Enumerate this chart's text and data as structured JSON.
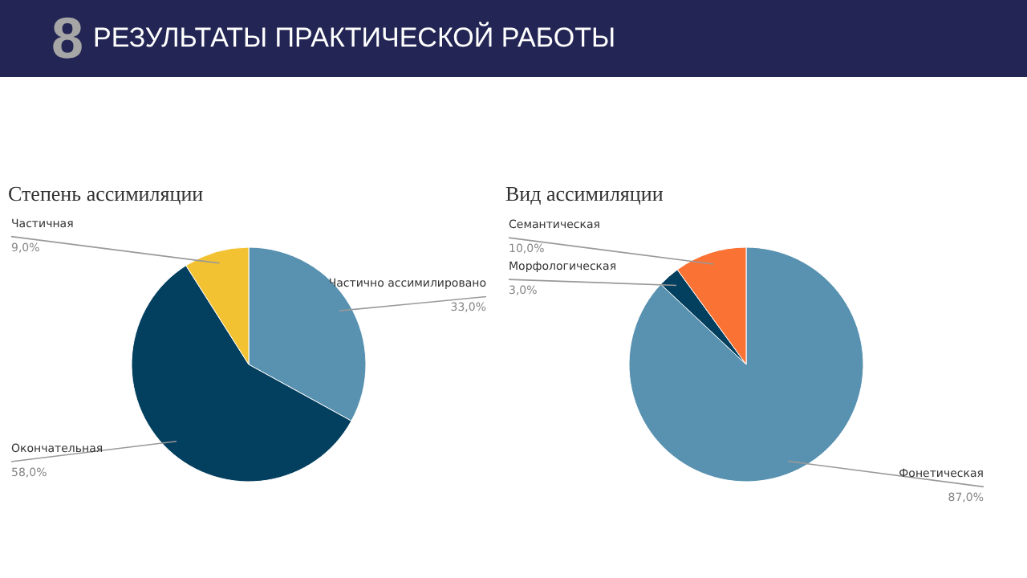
{
  "chart_data": [
    {
      "type": "other",
      "title": "РЕЗУЛЬТАТЫ ПРАКТИЧЕСКОЙ РАБОТЫ",
      "annotations": [
        "8"
      ]
    },
    {
      "type": "pie",
      "title": "Степень ассимиляции",
      "categories": [
        "Частично ассимилировано",
        "Окончательная",
        "Частичная"
      ],
      "values": [
        33.0,
        58.0,
        9.0
      ],
      "colors": [
        "#5892b0",
        "#033f5e",
        "#f2c232"
      ],
      "value_labels": [
        "33,0%",
        "58,0%",
        "9,0%"
      ]
    },
    {
      "type": "pie",
      "title": "Вид ассимиляции",
      "categories": [
        "Фонетическая",
        "Морфологическая",
        "Семантическая"
      ],
      "values": [
        87.0,
        3.0,
        10.0
      ],
      "colors": [
        "#5892b0",
        "#033f5e",
        "#fa7335"
      ],
      "value_labels": [
        "87,0%",
        "3,0%",
        "10,0%"
      ]
    }
  ]
}
